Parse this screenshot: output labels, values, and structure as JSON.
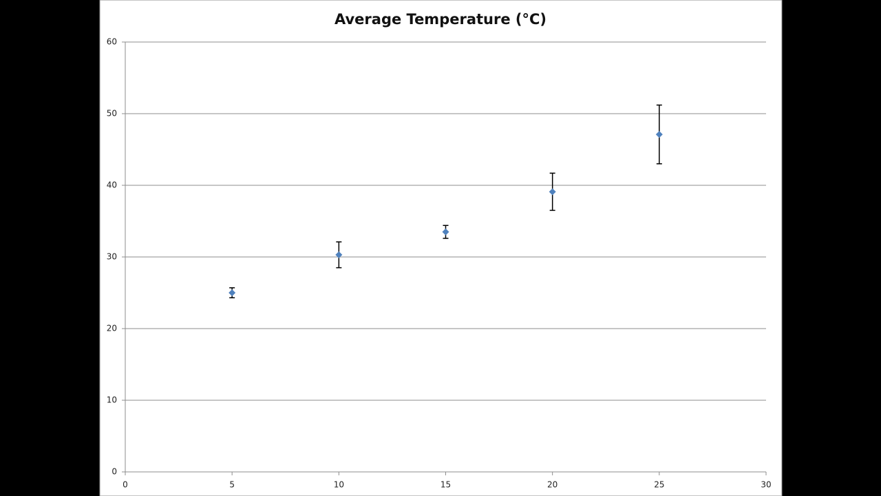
{
  "chart_data": {
    "type": "scatter",
    "title": "Average Temperature (°C)",
    "series": [
      {
        "color": "#4f81bd",
        "x": [
          5,
          10,
          15,
          20,
          25
        ],
        "values": [
          25,
          30.3,
          33.5,
          39.1,
          47.1
        ],
        "errors": [
          0.7,
          1.8,
          0.9,
          2.6,
          4.1
        ]
      }
    ],
    "xlim": [
      0,
      30
    ],
    "xticks": [
      0,
      5,
      10,
      15,
      20,
      25,
      30
    ],
    "ylim": [
      0,
      60
    ],
    "yticks": [
      0,
      10,
      20,
      30,
      40,
      50,
      60
    ],
    "grid": true
  }
}
